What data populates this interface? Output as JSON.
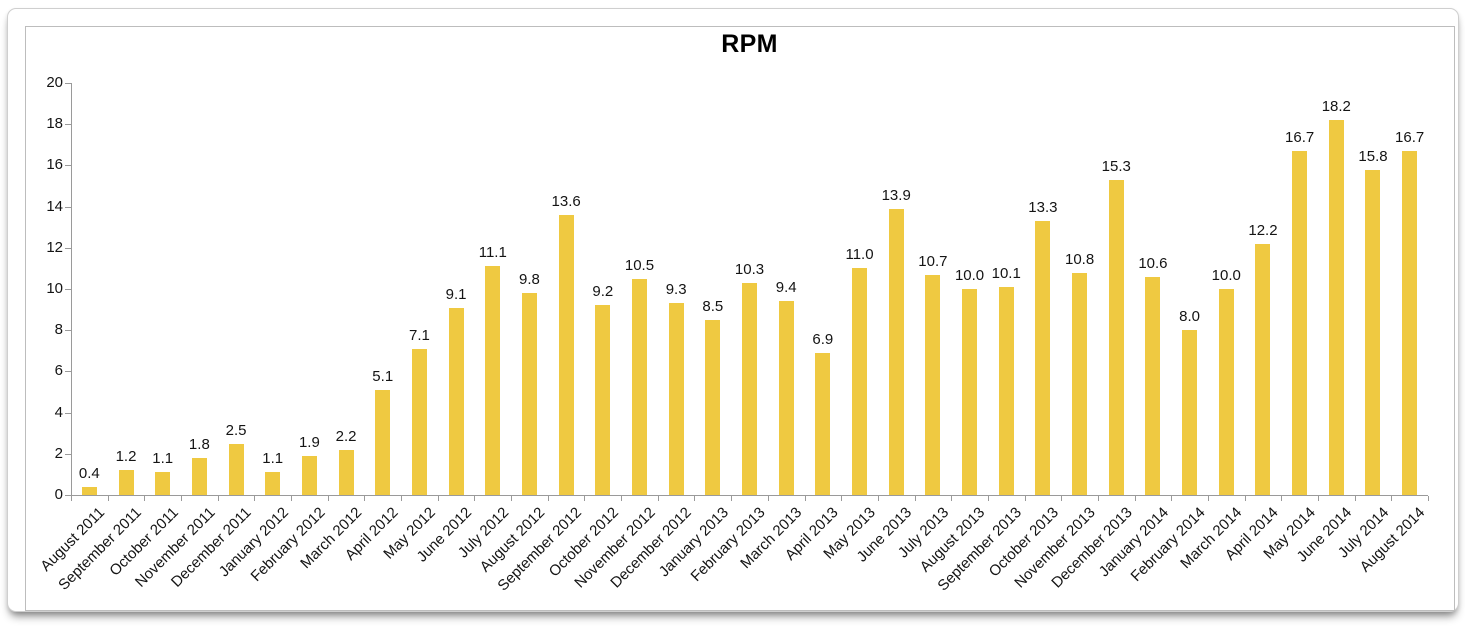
{
  "chart_data": {
    "type": "bar",
    "title": "RPM",
    "categories": [
      "August 2011",
      "September 2011",
      "October 2011",
      "November 2011",
      "December 2011",
      "January 2012",
      "February 2012",
      "March 2012",
      "April 2012",
      "May 2012",
      "June 2012",
      "July 2012",
      "August 2012",
      "September 2012",
      "October 2012",
      "November 2012",
      "December 2012",
      "January 2013",
      "February 2013",
      "March 2013",
      "April 2013",
      "May 2013",
      "June 2013",
      "July 2013",
      "August 2013",
      "September 2013",
      "October 2013",
      "November 2013",
      "December 2013",
      "January 2014",
      "February 2014",
      "March 2014",
      "April 2014",
      "May 2014",
      "June 2014",
      "July 2014",
      "August 2014"
    ],
    "values": [
      0.4,
      1.2,
      1.1,
      1.8,
      2.5,
      1.1,
      1.9,
      2.2,
      5.1,
      7.1,
      9.1,
      11.1,
      9.8,
      13.6,
      9.2,
      10.5,
      9.3,
      8.5,
      10.3,
      9.4,
      6.9,
      11.0,
      13.9,
      10.7,
      10.0,
      10.1,
      13.3,
      10.8,
      15.3,
      10.6,
      8.0,
      10.0,
      12.2,
      16.7,
      18.2,
      15.8,
      16.7
    ],
    "value_labels": [
      "0.4",
      "1.2",
      "1.1",
      "1.8",
      "2.5",
      "1.1",
      "1.9",
      "2.2",
      "5.1",
      "7.1",
      "9.1",
      "11.1",
      "9.8",
      "13.6",
      "9.2",
      "10.5",
      "9.3",
      "8.5",
      "10.3",
      "9.4",
      "6.9",
      "11.0",
      "13.9",
      "10.7",
      "10.0",
      "10.1",
      "13.3",
      "10.8",
      "15.3",
      "10.6",
      "8.0",
      "10.0",
      "12.2",
      "16.7",
      "18.2",
      "15.8",
      "16.7"
    ],
    "xlabel": "",
    "ylabel": "",
    "ylim": [
      0,
      20
    ],
    "yticks": [
      0,
      2,
      4,
      6,
      8,
      10,
      12,
      14,
      16,
      18,
      20
    ],
    "grid": false,
    "legend": false,
    "bar_color": "#EFC941",
    "axis_color": "#9a9a9a",
    "text_color": "#141414"
  }
}
